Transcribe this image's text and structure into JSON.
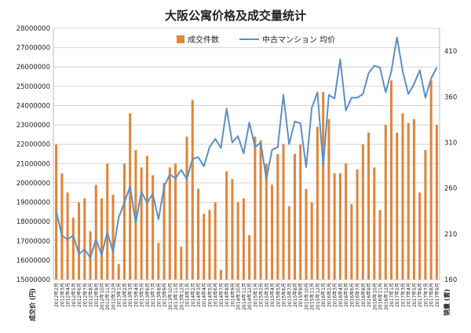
{
  "chart_data": {
    "type": "bar+line",
    "title": "大阪公寓价格及成交量统计",
    "legend": {
      "placement": "top-center",
      "bar_label": "成交件数",
      "line_label": "中古マンション 均价"
    },
    "colors": {
      "bar": "#E0853A",
      "line": "#5B8FC8",
      "grid": "#D4D4D4",
      "axis_text": "#222222"
    },
    "left_axis": {
      "label": "成交价 (円)",
      "min": 15000000,
      "max": 28000000,
      "step": 1000000,
      "ticks": [
        "15000000",
        "16000000",
        "17000000",
        "18000000",
        "19000000",
        "20000000",
        "21000000",
        "22000000",
        "23000000",
        "24000000",
        "25000000",
        "26000000",
        "27000000",
        "28000000"
      ]
    },
    "right_axis": {
      "label": "销量 (套)",
      "min": 160,
      "max": 435,
      "step": 50,
      "ticks": [
        "160",
        "210",
        "260",
        "310",
        "360",
        "410"
      ]
    },
    "grid": true,
    "categories": [
      "2012年2月",
      "2012年3月",
      "2012年4月",
      "2012年5月",
      "2012年6月",
      "2012年7月",
      "2012年8月",
      "2012年9月",
      "2012年10月",
      "2012年11月",
      "2012年12月",
      "2013年1月",
      "2013年2月",
      "2013年3月",
      "2013年4月",
      "2013年5月",
      "2013年6月",
      "2013年7月",
      "2013年8月",
      "2013年9月",
      "2013年10月",
      "2013年11月",
      "2013年12月",
      "2014年1月",
      "2014年2月",
      "2014年3月",
      "2014年4月",
      "2014年5月",
      "2014年6月",
      "2014年7月",
      "2014年8月",
      "2014年9月",
      "2014年10月",
      "2014年11月",
      "2014年12月",
      "2015年1月",
      "2015年2月",
      "2015年3月",
      "2015年4月",
      "2015年5月",
      "2015年6月",
      "2015年7月",
      "2015年8月",
      "2015年9月",
      "2015年10月",
      "2015年11月",
      "2015年12月",
      "2016年1月",
      "2016年2月",
      "2016年3月",
      "2016年4月",
      "2016年5月",
      "2016年6月",
      "2016年7月",
      "2016年8月",
      "2016年9月",
      "2016年10月",
      "2016年11月",
      "2016年12月",
      "2017年1月",
      "2017年2月",
      "2017年3月",
      "2017年4月",
      "2017年5月",
      "2017年6月",
      "2017年7月",
      "2017年8月",
      "2017年9月"
    ],
    "series": [
      {
        "name": "成交件数",
        "type": "bar",
        "axis": "left",
        "values": [
          22000000,
          20500000,
          19500000,
          18200000,
          19000000,
          19200000,
          17500000,
          19900000,
          19200000,
          21000000,
          19400000,
          15800000,
          21000000,
          23600000,
          21700000,
          20800000,
          21400000,
          20400000,
          16900000,
          20000000,
          20800000,
          21000000,
          16700000,
          22400000,
          24300000,
          19700000,
          18400000,
          18600000,
          19000000,
          15500000,
          20600000,
          20200000,
          19000000,
          19200000,
          17300000,
          22400000,
          22200000,
          21000000,
          19900000,
          21500000,
          22000000,
          18800000,
          21500000,
          22000000,
          19700000,
          19000000,
          22900000,
          24700000,
          23300000,
          20500000,
          20500000,
          21000000,
          18900000,
          20700000,
          22000000,
          22600000,
          20800000,
          18600000,
          23000000,
          25300000,
          22600000,
          23600000,
          23100000,
          23300000,
          19500000,
          21700000,
          25300000,
          23000000
        ]
      },
      {
        "name": "中古マンション 均价",
        "type": "line",
        "axis": "right",
        "values": [
          235,
          208,
          204,
          208,
          188,
          193,
          184,
          204,
          187,
          212,
          190,
          228,
          244,
          262,
          222,
          256,
          244,
          254,
          226,
          262,
          275,
          271,
          280,
          270,
          292,
          294,
          284,
          305,
          314,
          304,
          347,
          310,
          317,
          298,
          332,
          305,
          310,
          270,
          302,
          305,
          362,
          308,
          333,
          331,
          283,
          348,
          365,
          285,
          362,
          358,
          401,
          345,
          359,
          359,
          363,
          386,
          394,
          392,
          365,
          388,
          425,
          388,
          363,
          374,
          389,
          359,
          380,
          392
        ]
      }
    ]
  }
}
